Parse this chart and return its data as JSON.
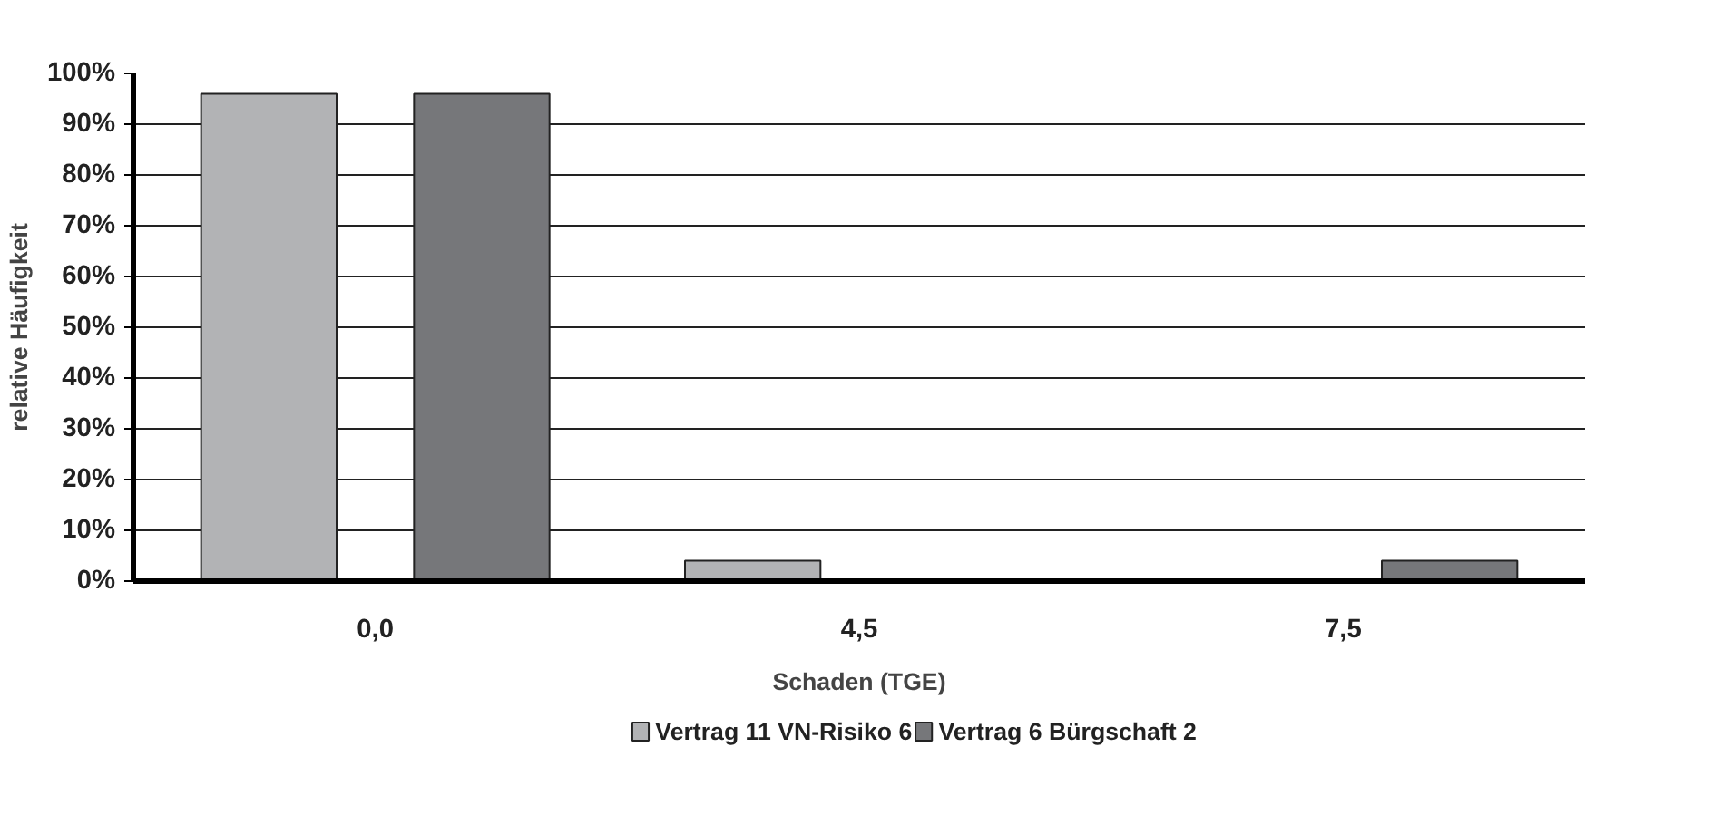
{
  "chart_data": {
    "type": "bar",
    "xlabel": "Schaden (TGE)",
    "ylabel": "relative Häufigkeit",
    "categories": [
      "0,0",
      "4,5",
      "7,5"
    ],
    "series": [
      {
        "name": "Vertrag 11 VN-Risiko 6",
        "color": "#b2b3b5",
        "values": [
          96,
          4,
          0
        ]
      },
      {
        "name": "Vertrag 6 Bürgschaft 2",
        "color": "#76777a",
        "values": [
          96,
          0,
          4
        ]
      }
    ],
    "ylim": [
      0,
      100
    ],
    "yticks": [
      {
        "value": 0,
        "label": "0%"
      },
      {
        "value": 10,
        "label": "10%"
      },
      {
        "value": 20,
        "label": "20%"
      },
      {
        "value": 30,
        "label": "30%"
      },
      {
        "value": 40,
        "label": "40%"
      },
      {
        "value": 50,
        "label": "50%"
      },
      {
        "value": 60,
        "label": "60%"
      },
      {
        "value": 70,
        "label": "70%"
      },
      {
        "value": 80,
        "label": "80%"
      },
      {
        "value": 90,
        "label": "90%"
      },
      {
        "value": 100,
        "label": "100%"
      }
    ],
    "grid": "y",
    "legend": "bottom"
  }
}
